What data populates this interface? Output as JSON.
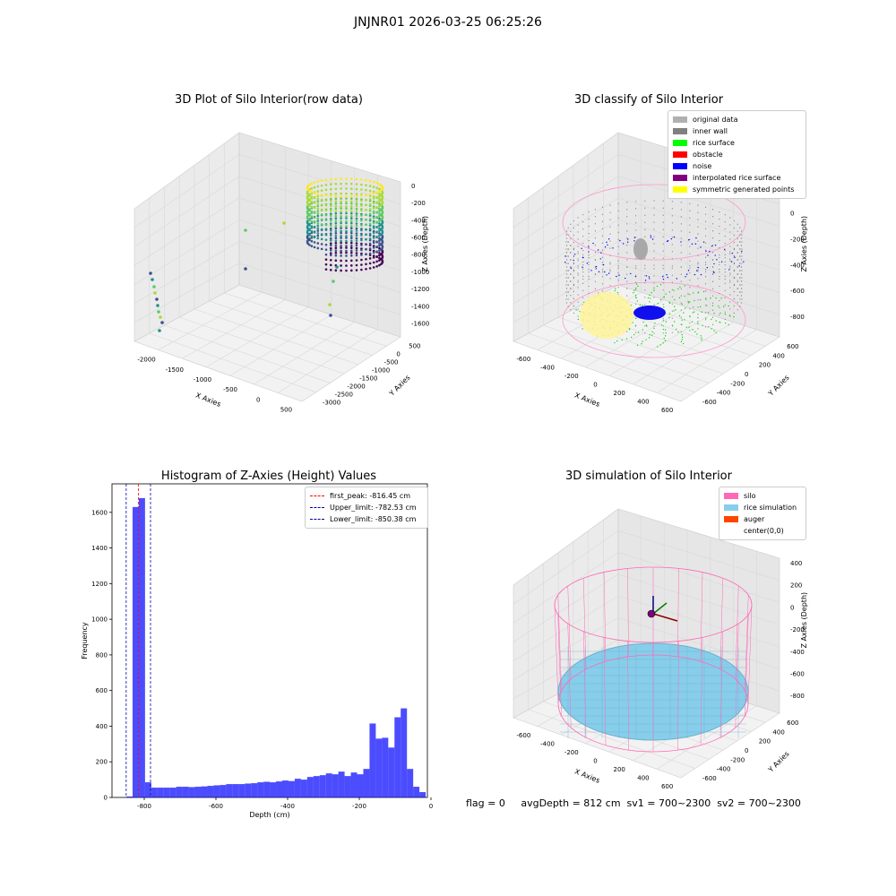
{
  "suptitle": "JNJNR01 2026-03-25 06:25:26",
  "footer": "flag = 0     avgDepth = 812 cm  sv1 = 700~2300  sv2 = 700~2300",
  "chart_data": [
    {
      "type": "scatter",
      "title": "3D Plot of Silo Interior(row data)",
      "xlabel": "X Axies",
      "ylabel": "Y Axies",
      "zlabel": "Z Axies (Depth)",
      "xticks": [
        "-2000",
        "-1500",
        "-1000",
        "-500",
        "0",
        "500"
      ],
      "yticks": [
        "500",
        "0",
        "-500",
        "-1000",
        "-1500",
        "-2000",
        "-2500",
        "-3000"
      ],
      "zticks": [
        "0",
        "-200",
        "-400",
        "-600",
        "-800",
        "-1000",
        "-1200",
        "-1400",
        "-1600"
      ],
      "colormap": "viridis"
    },
    {
      "type": "scatter",
      "title": "3D classify of Silo Interior",
      "xlabel": "X Axies",
      "ylabel": "Y Axies",
      "zlabel": "Z Axies (Depth)",
      "xticks": [
        "-600",
        "-400",
        "-200",
        "0",
        "200",
        "400",
        "600"
      ],
      "yticks": [
        "600",
        "400",
        "200",
        "0",
        "-200",
        "-400",
        "-600"
      ],
      "zticks": [
        "200",
        "0",
        "-200",
        "-400",
        "-600",
        "-800"
      ],
      "legend": [
        {
          "label": "original data",
          "color": "#b0b0b0"
        },
        {
          "label": "inner wall",
          "color": "#808080"
        },
        {
          "label": "rice surface",
          "color": "#00ff00"
        },
        {
          "label": "obstacle",
          "color": "#ff0000"
        },
        {
          "label": "noise",
          "color": "#0000ff"
        },
        {
          "label": "interpolated rice surface",
          "color": "#800080"
        },
        {
          "label": "symmetric generated points",
          "color": "#ffff00"
        }
      ]
    },
    {
      "type": "bar",
      "title": "Histogram of Z-Axies (Height) Values",
      "xlabel": "Depth (cm)",
      "ylabel": "Frequency",
      "xlim": [
        -890,
        -10
      ],
      "ylim": [
        0,
        1760
      ],
      "xticks": [
        -800,
        -600,
        -400,
        -200,
        0
      ],
      "yticks": [
        0,
        200,
        400,
        600,
        800,
        1000,
        1200,
        1400,
        1600
      ],
      "bar_color": "#0000ff",
      "bins_start": -850,
      "bin_width": 17.4,
      "values": [
        5,
        1630,
        1680,
        85,
        55,
        55,
        55,
        55,
        60,
        60,
        58,
        60,
        62,
        65,
        68,
        70,
        75,
        75,
        75,
        78,
        80,
        85,
        88,
        85,
        90,
        95,
        92,
        105,
        100,
        115,
        120,
        125,
        135,
        130,
        145,
        120,
        140,
        130,
        160,
        415,
        330,
        335,
        280,
        450,
        500,
        160,
        60,
        30
      ],
      "vlines": [
        {
          "label": "first_peak: -816.45 cm",
          "x": -816.45,
          "color": "#ff0000"
        },
        {
          "label": "Upper_limit: -782.53 cm",
          "x": -782.53,
          "color": "#0000aa"
        },
        {
          "label": "Lower_limit: -850.38 cm",
          "x": -850.38,
          "color": "#0000aa"
        }
      ]
    },
    {
      "type": "scatter",
      "title": "3D simulation of Silo Interior",
      "xlabel": "X Axies",
      "ylabel": "Y Axies",
      "zlabel": "Z Axies (Depth)",
      "xticks": [
        "-600",
        "-400",
        "-200",
        "0",
        "200",
        "400",
        "600"
      ],
      "yticks": [
        "600",
        "400",
        "200",
        "0",
        "-200",
        "-400",
        "-600"
      ],
      "zticks": [
        "400",
        "200",
        "0",
        "-200",
        "-400",
        "-600",
        "-800"
      ],
      "legend": [
        {
          "label": "silo",
          "color": "#ff69b4"
        },
        {
          "label": "rice simulation",
          "color": "#87ceeb"
        },
        {
          "label": "auger",
          "color": "#ff4500"
        },
        {
          "label": "center(0,0)",
          "color": "#ffffff"
        }
      ]
    }
  ]
}
